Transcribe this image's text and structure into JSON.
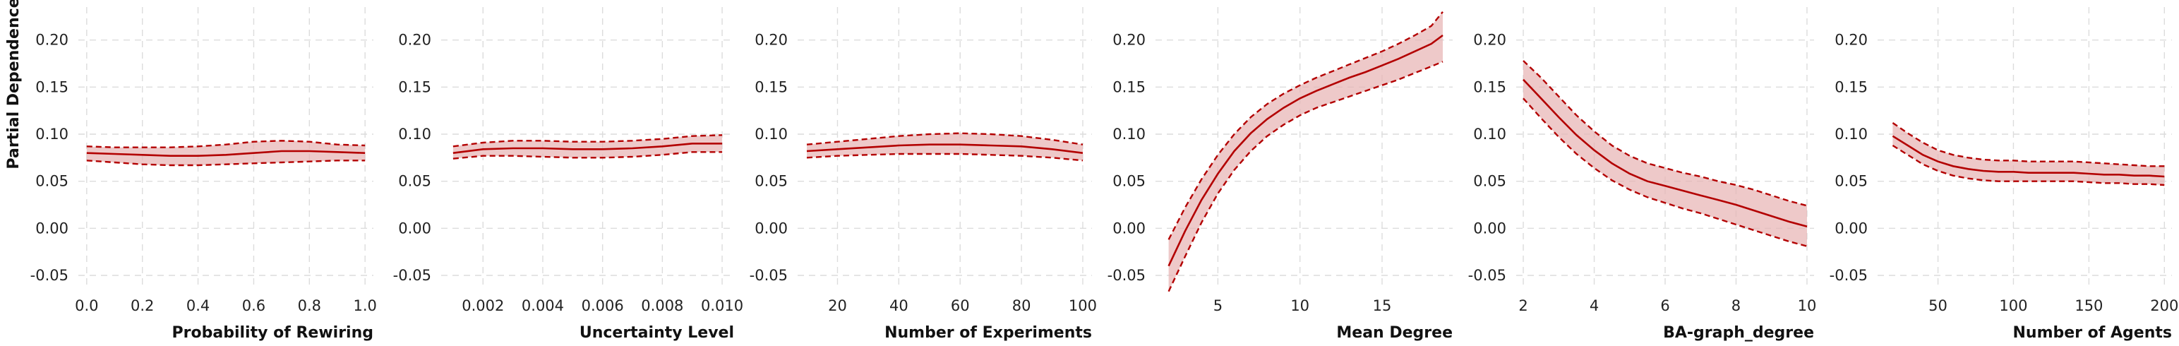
{
  "figure": {
    "ylabel": "Partial Dependence"
  },
  "colors": {
    "line": "#b30000",
    "band": "#e8b4b4",
    "grid": "#dcdcdc"
  },
  "chart_data": [
    {
      "type": "line",
      "xlabel": "Probability of Rewiring",
      "ylabel": "Partial Dependence",
      "xlim": [
        -0.03,
        1.03
      ],
      "ylim": [
        -0.065,
        0.235
      ],
      "xticks": [
        "0.0",
        "0.2",
        "0.4",
        "0.6",
        "0.8",
        "1.0"
      ],
      "yticks": [
        "-0.05",
        "0.00",
        "0.05",
        "0.10",
        "0.15",
        "0.20"
      ],
      "grid": true,
      "x": [
        0.0,
        0.1,
        0.2,
        0.3,
        0.4,
        0.5,
        0.6,
        0.7,
        0.8,
        0.9,
        1.0
      ],
      "series": [
        {
          "role": "upper",
          "values": [
            0.087,
            0.086,
            0.086,
            0.086,
            0.087,
            0.089,
            0.092,
            0.093,
            0.092,
            0.089,
            0.088
          ]
        },
        {
          "role": "mean",
          "values": [
            0.08,
            0.079,
            0.078,
            0.077,
            0.077,
            0.078,
            0.08,
            0.082,
            0.082,
            0.081,
            0.08
          ]
        },
        {
          "role": "lower",
          "values": [
            0.072,
            0.07,
            0.068,
            0.067,
            0.067,
            0.068,
            0.069,
            0.07,
            0.071,
            0.072,
            0.072
          ]
        }
      ]
    },
    {
      "type": "line",
      "xlabel": "Uncertainty Level",
      "ylabel": "Partial Dependence",
      "xlim": [
        0.0006,
        0.0104
      ],
      "ylim": [
        -0.065,
        0.235
      ],
      "xticks": [
        "0.002",
        "0.004",
        "0.006",
        "0.008",
        "0.010"
      ],
      "yticks": [
        "-0.05",
        "0.00",
        "0.05",
        "0.10",
        "0.15",
        "0.20"
      ],
      "grid": true,
      "x": [
        0.001,
        0.002,
        0.003,
        0.004,
        0.005,
        0.006,
        0.007,
        0.008,
        0.009,
        0.01
      ],
      "series": [
        {
          "role": "upper",
          "values": [
            0.087,
            0.091,
            0.093,
            0.093,
            0.092,
            0.092,
            0.093,
            0.095,
            0.098,
            0.099
          ]
        },
        {
          "role": "mean",
          "values": [
            0.08,
            0.084,
            0.085,
            0.085,
            0.084,
            0.084,
            0.085,
            0.087,
            0.09,
            0.09
          ]
        },
        {
          "role": "lower",
          "values": [
            0.074,
            0.077,
            0.077,
            0.076,
            0.075,
            0.075,
            0.076,
            0.078,
            0.081,
            0.081
          ]
        }
      ]
    },
    {
      "type": "line",
      "xlabel": "Number of Experiments",
      "ylabel": "Partial Dependence",
      "xlim": [
        7,
        103
      ],
      "ylim": [
        -0.065,
        0.235
      ],
      "xticks": [
        "20",
        "40",
        "60",
        "80",
        "100"
      ],
      "yticks": [
        "-0.05",
        "0.00",
        "0.05",
        "0.10",
        "0.15",
        "0.20"
      ],
      "grid": true,
      "x": [
        10,
        20,
        30,
        40,
        50,
        60,
        70,
        80,
        90,
        100
      ],
      "series": [
        {
          "role": "upper",
          "values": [
            0.089,
            0.092,
            0.095,
            0.098,
            0.1,
            0.101,
            0.1,
            0.098,
            0.094,
            0.089
          ]
        },
        {
          "role": "mean",
          "values": [
            0.082,
            0.084,
            0.086,
            0.088,
            0.089,
            0.089,
            0.088,
            0.087,
            0.084,
            0.08
          ]
        },
        {
          "role": "lower",
          "values": [
            0.075,
            0.077,
            0.078,
            0.079,
            0.079,
            0.079,
            0.078,
            0.077,
            0.075,
            0.072
          ]
        }
      ]
    },
    {
      "type": "line",
      "xlabel": "Mean Degree",
      "ylabel": "Partial Dependence",
      "xlim": [
        1.2,
        19.3
      ],
      "ylim": [
        -0.065,
        0.235
      ],
      "xticks": [
        "5",
        "10",
        "15"
      ],
      "yticks": [
        "-0.05",
        "0.00",
        "0.05",
        "0.10",
        "0.15",
        "0.20"
      ],
      "grid": true,
      "x": [
        2,
        3,
        4,
        5,
        6,
        7,
        8,
        9,
        10,
        11,
        12,
        13,
        14,
        15,
        16,
        17,
        18,
        18.7
      ],
      "series": [
        {
          "role": "upper",
          "values": [
            -0.012,
            0.022,
            0.052,
            0.078,
            0.1,
            0.118,
            0.132,
            0.143,
            0.152,
            0.16,
            0.167,
            0.174,
            0.181,
            0.188,
            0.196,
            0.205,
            0.215,
            0.23
          ]
        },
        {
          "role": "mean",
          "values": [
            -0.04,
            -0.003,
            0.03,
            0.058,
            0.082,
            0.101,
            0.116,
            0.128,
            0.138,
            0.146,
            0.153,
            0.16,
            0.166,
            0.173,
            0.18,
            0.188,
            0.196,
            0.205
          ]
        },
        {
          "role": "lower",
          "values": [
            -0.067,
            -0.03,
            0.006,
            0.037,
            0.062,
            0.082,
            0.098,
            0.11,
            0.12,
            0.128,
            0.134,
            0.14,
            0.146,
            0.152,
            0.158,
            0.165,
            0.172,
            0.177
          ]
        }
      ]
    },
    {
      "type": "line",
      "xlabel": "BA-graph_degree",
      "ylabel": "Partial Dependence",
      "xlim": [
        1.8,
        10.2
      ],
      "ylim": [
        -0.065,
        0.235
      ],
      "xticks": [
        "2",
        "4",
        "6",
        "8",
        "10"
      ],
      "yticks": [
        "-0.05",
        "0.00",
        "0.05",
        "0.10",
        "0.15",
        "0.20"
      ],
      "grid": true,
      "x": [
        2,
        2.5,
        3,
        3.5,
        4,
        4.5,
        5,
        5.5,
        6,
        6.5,
        7,
        7.5,
        8,
        8.5,
        9,
        9.5,
        10
      ],
      "series": [
        {
          "role": "upper",
          "values": [
            0.178,
            0.16,
            0.14,
            0.12,
            0.103,
            0.088,
            0.077,
            0.069,
            0.064,
            0.059,
            0.055,
            0.05,
            0.046,
            0.041,
            0.035,
            0.029,
            0.024
          ]
        },
        {
          "role": "mean",
          "values": [
            0.158,
            0.138,
            0.118,
            0.099,
            0.083,
            0.069,
            0.058,
            0.05,
            0.045,
            0.04,
            0.035,
            0.03,
            0.025,
            0.019,
            0.013,
            0.007,
            0.002
          ]
        },
        {
          "role": "lower",
          "values": [
            0.138,
            0.117,
            0.097,
            0.079,
            0.064,
            0.051,
            0.041,
            0.033,
            0.027,
            0.021,
            0.016,
            0.01,
            0.004,
            -0.002,
            -0.008,
            -0.014,
            -0.019
          ]
        }
      ]
    },
    {
      "type": "line",
      "xlabel": "Number of Agents",
      "ylabel": "Partial Dependence",
      "xlim": [
        10,
        205
      ],
      "ylim": [
        -0.065,
        0.235
      ],
      "xticks": [
        "50",
        "100",
        "150",
        "200"
      ],
      "yticks": [
        "-0.05",
        "0.00",
        "0.05",
        "0.10",
        "0.15",
        "0.20"
      ],
      "grid": true,
      "x": [
        20,
        30,
        40,
        50,
        60,
        70,
        80,
        90,
        100,
        110,
        120,
        130,
        140,
        150,
        160,
        170,
        180,
        190,
        200
      ],
      "series": [
        {
          "role": "upper",
          "values": [
            0.112,
            0.101,
            0.091,
            0.083,
            0.078,
            0.075,
            0.073,
            0.072,
            0.072,
            0.071,
            0.071,
            0.071,
            0.071,
            0.07,
            0.069,
            0.068,
            0.067,
            0.066,
            0.066
          ]
        },
        {
          "role": "mean",
          "values": [
            0.098,
            0.088,
            0.078,
            0.071,
            0.066,
            0.063,
            0.061,
            0.06,
            0.06,
            0.059,
            0.059,
            0.059,
            0.059,
            0.058,
            0.057,
            0.057,
            0.056,
            0.056,
            0.055
          ]
        },
        {
          "role": "lower",
          "values": [
            0.088,
            0.078,
            0.068,
            0.061,
            0.056,
            0.053,
            0.051,
            0.05,
            0.05,
            0.05,
            0.05,
            0.05,
            0.05,
            0.049,
            0.048,
            0.048,
            0.047,
            0.047,
            0.046
          ]
        }
      ]
    }
  ]
}
